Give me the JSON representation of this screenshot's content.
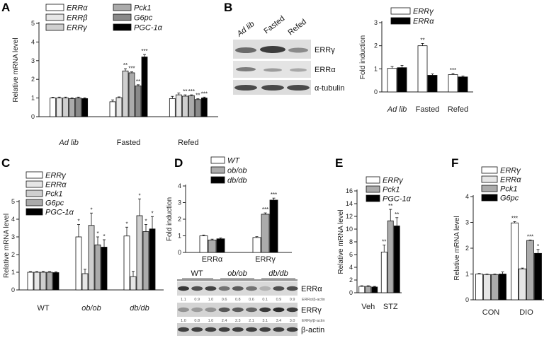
{
  "fill_colors": [
    "#ffffff",
    "#e6e6e6",
    "#cfcfcf",
    "#ababab",
    "#8a8a8a",
    "#000000"
  ],
  "chart_data": [
    {
      "panel": "A",
      "type": "bar",
      "ylabel": "Relative mRNA level",
      "ylim": [
        0,
        5
      ],
      "yticks": [
        "0",
        "1",
        "2",
        "3",
        "4",
        "5"
      ],
      "categories": [
        "Ad lib",
        "Fasted",
        "Refed"
      ],
      "italic_categories": [
        true,
        false,
        false
      ],
      "legend_cols": 2,
      "series": [
        {
          "name": "ERRα",
          "values": [
            1.0,
            0.8,
            0.97
          ],
          "errors": [
            0.04,
            0.1,
            0.12
          ],
          "sig": [
            "",
            "",
            ""
          ]
        },
        {
          "name": "ERRβ",
          "values": [
            1.0,
            1.02,
            1.17
          ],
          "errors": [
            0.05,
            0.04,
            0.1
          ],
          "sig": [
            "",
            "",
            ""
          ]
        },
        {
          "name": "ERRγ",
          "values": [
            1.0,
            2.45,
            1.1
          ],
          "errors": [
            0.05,
            0.12,
            0.07
          ],
          "sig": [
            "",
            "**",
            "**"
          ]
        },
        {
          "name": "Pck1",
          "values": [
            0.97,
            2.35,
            1.13
          ],
          "errors": [
            0.04,
            0.05,
            0.04
          ],
          "sig": [
            "",
            "***",
            "***"
          ]
        },
        {
          "name": "G6pc",
          "values": [
            1.0,
            1.65,
            0.92
          ],
          "errors": [
            0.05,
            0.06,
            0.04
          ],
          "sig": [
            "",
            "**",
            "**"
          ]
        },
        {
          "name": "PGC-1α",
          "values": [
            0.97,
            3.2,
            1.0
          ],
          "errors": [
            0.04,
            0.13,
            0.05
          ],
          "sig": [
            "",
            "***",
            "***"
          ]
        }
      ]
    },
    {
      "panel": "B",
      "type": "bar",
      "ylabel": "Fold induction",
      "ylim": [
        0,
        3
      ],
      "yticks": [
        "0",
        "1",
        "2",
        "3"
      ],
      "categories": [
        "Ad lib",
        "Fasted",
        "Refed"
      ],
      "italic_categories": [
        true,
        false,
        false
      ],
      "legend_cols": 1,
      "series": [
        {
          "name": "ERRγ",
          "values": [
            1.02,
            2.0,
            0.75
          ],
          "errors": [
            0.08,
            0.1,
            0.05
          ],
          "sig": [
            "",
            "**",
            "***"
          ]
        },
        {
          "name": "ERRα",
          "values": [
            1.05,
            0.72,
            0.65
          ],
          "errors": [
            0.1,
            0.06,
            0.04
          ],
          "sig": [
            "",
            "",
            ""
          ]
        }
      ]
    },
    {
      "panel": "C",
      "type": "bar",
      "ylabel": "Relative mRNA level",
      "ylim": [
        0,
        5
      ],
      "yticks": [
        "0",
        "1",
        "2",
        "3",
        "4",
        "5"
      ],
      "categories": [
        "WT",
        "ob/ob",
        "db/db"
      ],
      "italic_categories": [
        false,
        true,
        true
      ],
      "legend_cols": 1,
      "series": [
        {
          "name": "ERRγ",
          "values": [
            1.0,
            3.0,
            3.05
          ],
          "errors": [
            0.04,
            0.7,
            0.5
          ],
          "sig": [
            "",
            "*",
            "*"
          ]
        },
        {
          "name": "ERRα",
          "values": [
            1.0,
            0.92,
            0.75
          ],
          "errors": [
            0.04,
            0.25,
            0.3
          ],
          "sig": [
            "",
            "",
            ""
          ]
        },
        {
          "name": "Pck1",
          "values": [
            1.0,
            3.65,
            4.2
          ],
          "errors": [
            0.05,
            0.7,
            0.95
          ],
          "sig": [
            "",
            "*",
            "*"
          ]
        },
        {
          "name": "G6pc",
          "values": [
            1.0,
            2.55,
            3.3
          ],
          "errors": [
            0.04,
            0.45,
            0.4
          ],
          "sig": [
            "",
            "*",
            "*"
          ]
        },
        {
          "name": "PGC-1α",
          "values": [
            0.98,
            2.42,
            3.45
          ],
          "errors": [
            0.04,
            0.42,
            0.7
          ],
          "sig": [
            "",
            "*",
            "*"
          ]
        }
      ]
    },
    {
      "panel": "D",
      "type": "bar",
      "ylabel": "Fold induction",
      "ylim": [
        0,
        4
      ],
      "yticks": [
        "0",
        "1",
        "2",
        "3",
        "4"
      ],
      "categories": [
        "ERRα",
        "ERRγ"
      ],
      "italic_categories": [
        false,
        false
      ],
      "legend_cols": 1,
      "series": [
        {
          "name": "WT",
          "values": [
            1.0,
            0.9
          ],
          "errors": [
            0.05,
            0.05
          ],
          "sig": [
            "",
            ""
          ]
        },
        {
          "name": "ob/ob",
          "values": [
            0.75,
            2.3
          ],
          "errors": [
            0.05,
            0.08
          ],
          "sig": [
            "",
            "***"
          ]
        },
        {
          "name": "db/db",
          "values": [
            0.82,
            3.15
          ],
          "errors": [
            0.05,
            0.12
          ],
          "sig": [
            "",
            "***"
          ]
        }
      ]
    },
    {
      "panel": "E",
      "type": "bar",
      "ylabel": "Relative mRNA level",
      "ylim": [
        0,
        16
      ],
      "yticks": [
        "0",
        "2",
        "4",
        "6",
        "8",
        "10",
        "12",
        "14",
        "16"
      ],
      "categories": [
        "Veh",
        "STZ"
      ],
      "italic_categories": [
        false,
        false
      ],
      "legend_cols": 1,
      "series": [
        {
          "name": "ERRγ",
          "values": [
            1.0,
            6.4
          ],
          "errors": [
            0.1,
            1.1
          ],
          "sig": [
            "",
            "**"
          ]
        },
        {
          "name": "Pck1",
          "values": [
            1.0,
            11.3
          ],
          "errors": [
            0.1,
            1.8
          ],
          "sig": [
            "",
            "**"
          ]
        },
        {
          "name": "PGC-1α",
          "values": [
            0.9,
            10.5
          ],
          "errors": [
            0.1,
            1.3
          ],
          "sig": [
            "",
            "**"
          ]
        }
      ]
    },
    {
      "panel": "F",
      "type": "bar",
      "ylabel": "Relative mRNA level",
      "ylim": [
        0,
        4
      ],
      "yticks": [
        "0",
        "1",
        "2",
        "3",
        "4"
      ],
      "categories": [
        "CON",
        "DIO"
      ],
      "italic_categories": [
        false,
        false
      ],
      "legend_cols": 1,
      "series": [
        {
          "name": "ERRγ",
          "values": [
            1.0,
            2.98
          ],
          "errors": [
            0.02,
            0.05
          ],
          "sig": [
            "",
            "***"
          ]
        },
        {
          "name": "ERRα",
          "values": [
            0.98,
            1.2
          ],
          "errors": [
            0.02,
            0.03
          ],
          "sig": [
            "",
            ""
          ]
        },
        {
          "name": "Pck1",
          "values": [
            0.98,
            2.3
          ],
          "errors": [
            0.02,
            0.02
          ],
          "sig": [
            "",
            "***"
          ]
        },
        {
          "name": "G6pc",
          "values": [
            1.0,
            1.8
          ],
          "errors": [
            0.08,
            0.15
          ],
          "sig": [
            "",
            "*"
          ]
        }
      ]
    }
  ],
  "blots": {
    "B": {
      "lanes": [
        "Ad lib",
        "Fasted",
        "Refed"
      ],
      "italic_lanes": [
        true,
        false,
        false
      ],
      "rows": [
        "ERRγ",
        "ERRα",
        "α-tubulin"
      ]
    },
    "D": {
      "groups": [
        "WT",
        "ob/ob",
        "db/db"
      ],
      "italic_groups": [
        false,
        true,
        true
      ],
      "rows": [
        "ERRα",
        "ERRγ",
        "β-actin"
      ],
      "ratio_labels": [
        "ERRα/β-actin",
        "ERRγ/β-actin"
      ],
      "ratios": [
        [
          "1.1",
          "0.9",
          "1.0",
          "0.6",
          "0.8",
          "0.6",
          "0.1",
          "0.9",
          "0.9"
        ],
        [
          "1.0",
          "0.8",
          "1.0",
          "2.4",
          "2.3",
          "2.1",
          "3.1",
          "3.4",
          "3.0"
        ]
      ]
    }
  }
}
